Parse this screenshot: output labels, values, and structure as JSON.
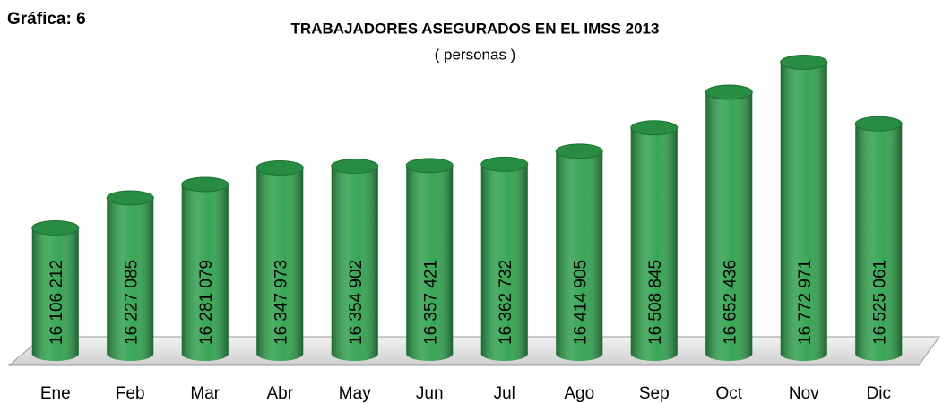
{
  "chart_data": {
    "type": "bar",
    "label": "Gráfica: 6",
    "title": "TRABAJADORES ASEGURADOS EN EL IMSS  2013",
    "subtitle": "( personas )",
    "categories": [
      "Ene",
      "Feb",
      "Mar",
      "Abr",
      "May",
      "Jun",
      "Jul",
      "Ago",
      "Sep",
      "Oct",
      "Nov",
      "Dic"
    ],
    "values": [
      16106212,
      16227085,
      16281079,
      16347973,
      16354902,
      16357421,
      16362732,
      16414905,
      16508845,
      16652436,
      16772971,
      16525061
    ],
    "value_labels": [
      "16 106 212",
      "16 227 085",
      "16 281 079",
      "16 347 973",
      "16 354 902",
      "16 357 421",
      "16 362 732",
      "16 414 905",
      "16 508 845",
      "16 652 436",
      "16 772 971",
      "16 525 061"
    ],
    "color": "#2ea14c",
    "ylim": [
      15600000,
      16800000
    ]
  }
}
